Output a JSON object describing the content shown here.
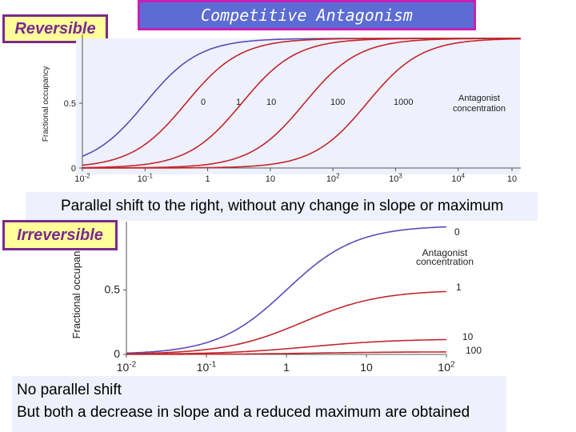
{
  "slide": {
    "title": "Competitive Antagonism",
    "label_reversible": "Reversible",
    "label_irreversible": "Irreversible",
    "caption_top": "Parallel shift to the right, without any change in slope or maximum",
    "caption_bottom_line1": "No parallel shift",
    "caption_bottom_line2": "But both a decrease in slope and a reduced maximum are obtained"
  },
  "colors": {
    "title_bg": "#5c6cd4",
    "title_border": "#c81eb4",
    "label_bg": "#ffff99",
    "label_border": "#7a2a8e",
    "curve_control": "#5a4ab8",
    "curve_antagonist": "#c0282d"
  },
  "chart_data": [
    {
      "type": "line",
      "ylabel": "Fractional occupancy",
      "xscale": "log",
      "ylim": [
        0,
        1
      ],
      "y_ticks": [
        "0",
        "0.5"
      ],
      "x_ticks": [
        "10-2",
        "10-1",
        "1",
        "10",
        "102",
        "103",
        "104",
        "10"
      ],
      "series_labels": [
        "0",
        "1",
        "10",
        "100",
        "1000"
      ],
      "legend_title": [
        "Antagonist",
        "concentration"
      ],
      "series": [
        {
          "antagonist": 0,
          "ec50": 0.1,
          "max": 1,
          "hill": 1
        },
        {
          "antagonist": 1,
          "ec50": 0.45,
          "max": 1,
          "hill": 1
        },
        {
          "antagonist": 10,
          "ec50": 3.5,
          "max": 1,
          "hill": 1
        },
        {
          "antagonist": 100,
          "ec50": 35,
          "max": 1,
          "hill": 1
        },
        {
          "antagonist": 1000,
          "ec50": 350,
          "max": 1,
          "hill": 1
        }
      ]
    },
    {
      "type": "line",
      "ylabel": "Fractional occupancy",
      "xscale": "log",
      "ylim": [
        0,
        1
      ],
      "y_ticks": [
        "0",
        "0.5"
      ],
      "x_ticks": [
        "10-2",
        "10-1",
        "1",
        "10",
        "102"
      ],
      "series_labels": [
        "0",
        "1",
        "10",
        "100"
      ],
      "legend_title": [
        "Antagonist",
        "concentration"
      ],
      "series": [
        {
          "antagonist": 0,
          "ec50": 1.0,
          "max": 1.0,
          "hill": 1
        },
        {
          "antagonist": 1,
          "ec50": 1.6,
          "max": 0.5,
          "hill": 0.9
        },
        {
          "antagonist": 10,
          "ec50": 2.0,
          "max": 0.12,
          "hill": 0.8
        },
        {
          "antagonist": 100,
          "ec50": 2.2,
          "max": 0.02,
          "hill": 0.8
        }
      ]
    }
  ]
}
